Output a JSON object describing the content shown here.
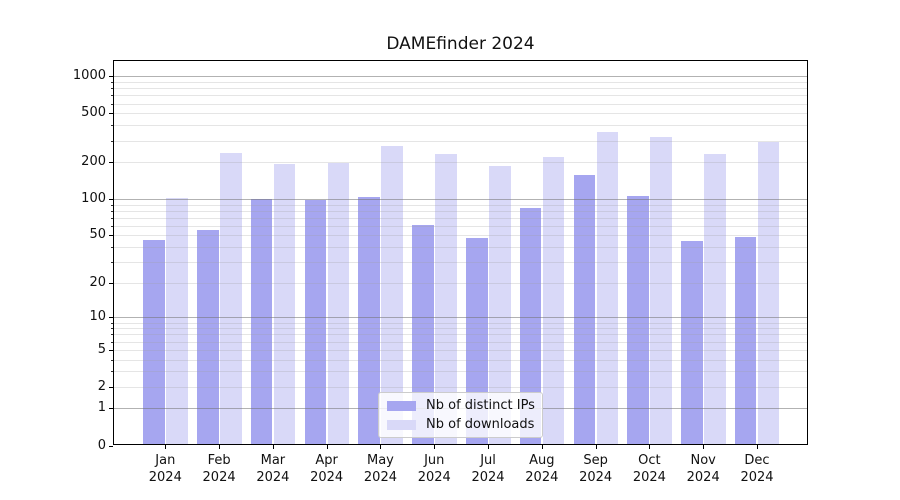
{
  "title": "DAMEfinder 2024",
  "chart_data": {
    "type": "bar",
    "title": "DAMEfinder 2024",
    "categories": [
      "Jan",
      "Feb",
      "Mar",
      "Apr",
      "May",
      "Jun",
      "Jul",
      "Aug",
      "Sep",
      "Oct",
      "Nov",
      "Dec"
    ],
    "category_year": "2024",
    "series": [
      {
        "name": "Nb of distinct IPs",
        "color": "#a6a6f0",
        "values": [
          46,
          56,
          100,
          99,
          103,
          61,
          48,
          85,
          157,
          106,
          45,
          49
        ]
      },
      {
        "name": "Nb of downloads",
        "color": "#d9d9f8",
        "values": [
          101,
          236,
          193,
          197,
          271,
          234,
          186,
          222,
          353,
          319,
          232,
          292
        ]
      }
    ],
    "xlabel": "",
    "ylabel": "",
    "yscale": "log10(value+1)",
    "ylim": [
      0,
      1360
    ],
    "ytick_values": [
      0,
      1,
      2,
      5,
      10,
      20,
      50,
      100,
      200,
      500,
      1000
    ],
    "grid": "on",
    "grid_major_color": "#b3b3b3",
    "grid_minor_color": "#e5e5e5",
    "legend_position": "lower center"
  }
}
